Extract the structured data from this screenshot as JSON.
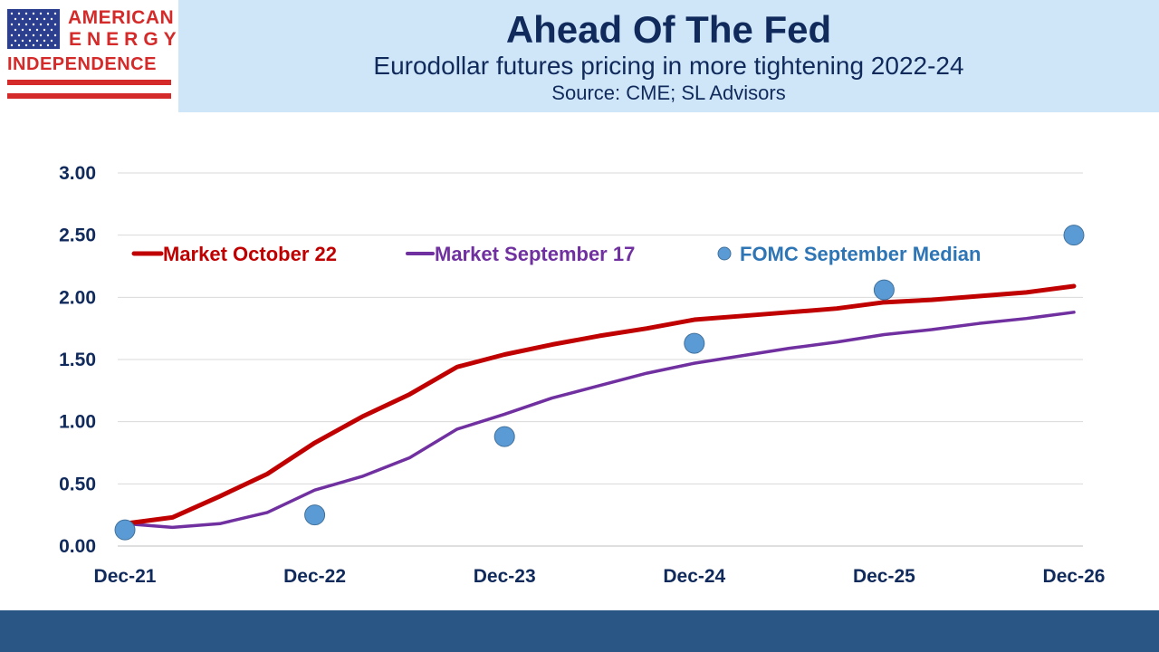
{
  "logo": {
    "line1": "AMERICAN",
    "line2": "ENERGY",
    "line3": "INDEPENDENCE"
  },
  "header": {
    "title": "Ahead Of The Fed",
    "subtitle": "Eurodollar futures pricing in more tightening 2022-24",
    "source": "Source: CME; SL Advisors"
  },
  "colors": {
    "header_bg": "#cfe5f8",
    "title_text": "#102a5c",
    "series_oct": "#c00000",
    "series_sep": "#7030a0",
    "fomc_dots": "#5b9bd5",
    "fomc_label": "#2e75b6",
    "footer_bar": "#2a5685"
  },
  "chart_data": {
    "type": "line",
    "ylim": [
      0,
      3
    ],
    "yticks": [
      "0.00",
      "0.50",
      "1.00",
      "1.50",
      "2.00",
      "2.50",
      "3.00"
    ],
    "x_tick_labels": [
      "Dec-21",
      "Dec-22",
      "Dec-23",
      "Dec-24",
      "Dec-25",
      "Dec-26"
    ],
    "x_tick_positions": [
      0,
      4,
      8,
      12,
      16,
      20
    ],
    "grid": true,
    "legend_position": "top",
    "series": [
      {
        "name": "Market October 22",
        "kind": "line",
        "x": [
          0,
          1,
          2,
          3,
          4,
          5,
          6,
          7,
          8,
          9,
          10,
          11,
          12,
          13,
          14,
          15,
          16,
          17,
          18,
          19,
          20
        ],
        "values": [
          0.18,
          0.23,
          0.4,
          0.58,
          0.83,
          1.04,
          1.22,
          1.44,
          1.54,
          1.62,
          1.69,
          1.75,
          1.82,
          1.85,
          1.88,
          1.91,
          1.96,
          1.98,
          2.01,
          2.04,
          2.09
        ]
      },
      {
        "name": "Market September 17",
        "kind": "line",
        "x": [
          0,
          1,
          2,
          3,
          4,
          5,
          6,
          7,
          8,
          9,
          10,
          11,
          12,
          13,
          14,
          15,
          16,
          17,
          18,
          19,
          20
        ],
        "values": [
          0.18,
          0.15,
          0.18,
          0.27,
          0.45,
          0.56,
          0.71,
          0.94,
          1.06,
          1.19,
          1.29,
          1.39,
          1.47,
          1.53,
          1.59,
          1.64,
          1.7,
          1.74,
          1.79,
          1.83,
          1.88
        ]
      },
      {
        "name": "FOMC September Median",
        "kind": "scatter",
        "x": [
          0,
          4,
          8,
          12,
          16,
          20
        ],
        "values": [
          0.13,
          0.25,
          0.88,
          1.63,
          2.06,
          2.5
        ]
      }
    ]
  }
}
